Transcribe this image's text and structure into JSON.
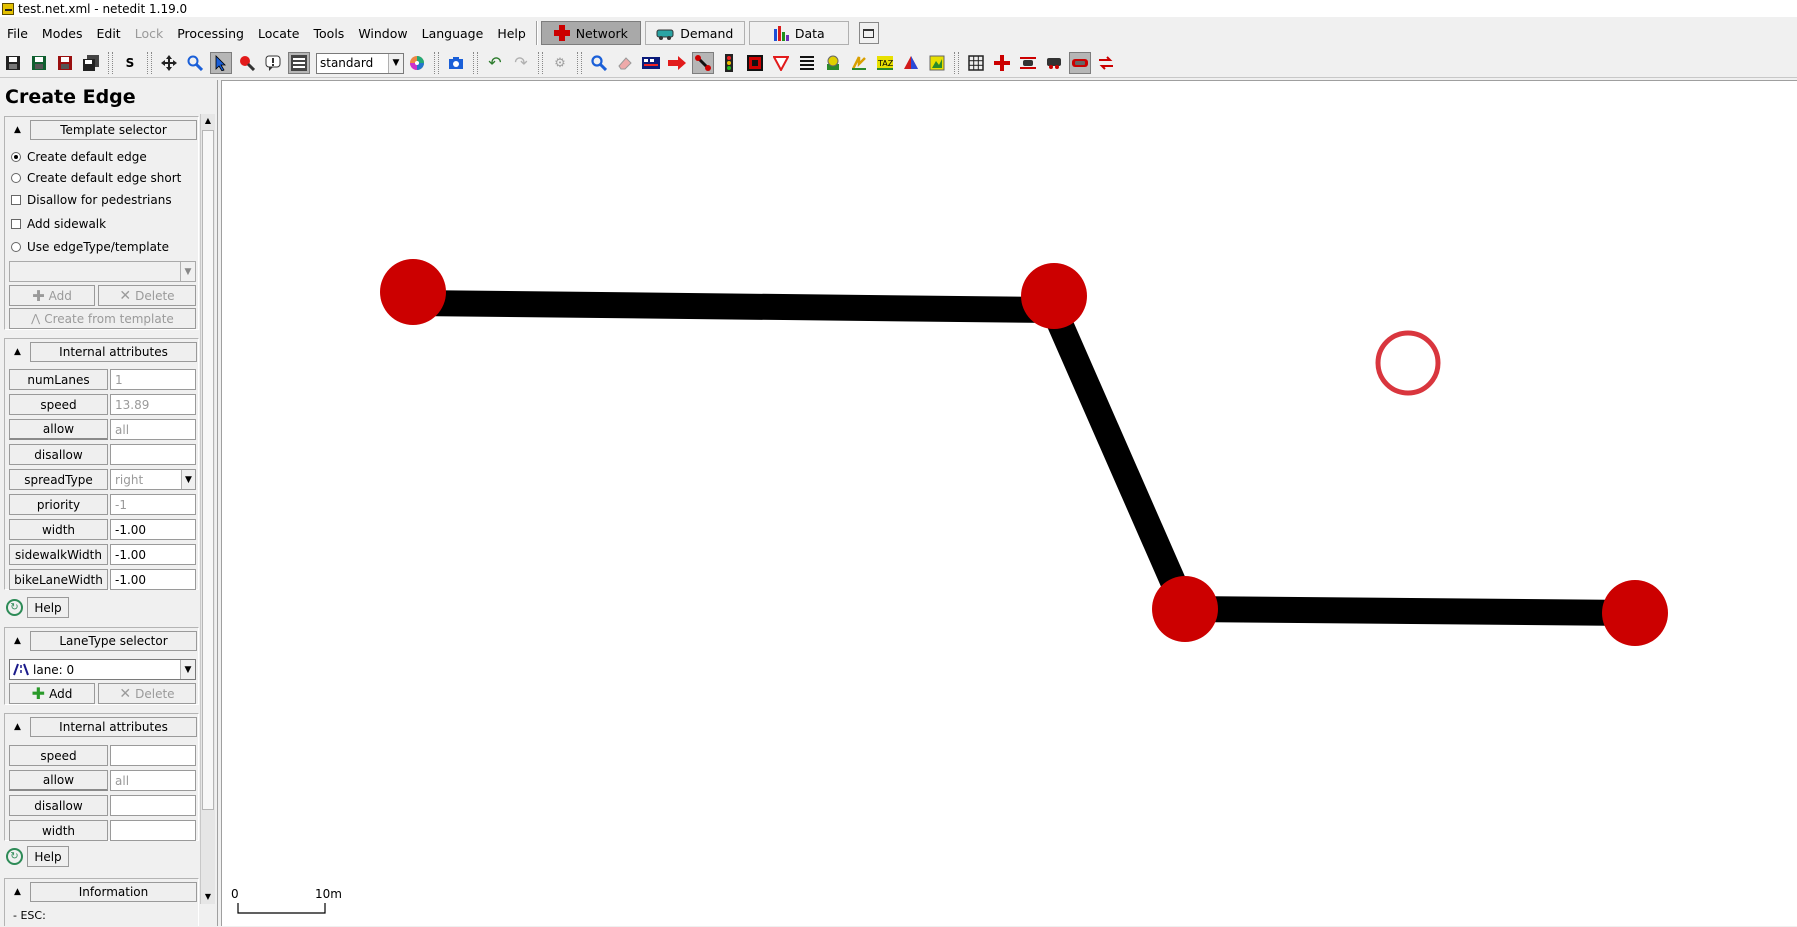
{
  "window": {
    "title": "test.net.xml - netedit 1.19.0"
  },
  "menu": {
    "items": [
      {
        "label": "File",
        "enabled": true
      },
      {
        "label": "Modes",
        "enabled": true
      },
      {
        "label": "Edit",
        "enabled": true
      },
      {
        "label": "Lock",
        "enabled": false
      },
      {
        "label": "Processing",
        "enabled": true
      },
      {
        "label": "Locate",
        "enabled": true
      },
      {
        "label": "Tools",
        "enabled": true
      },
      {
        "label": "Window",
        "enabled": true
      },
      {
        "label": "Language",
        "enabled": true
      },
      {
        "label": "Help",
        "enabled": true
      }
    ],
    "supermodes": [
      {
        "label": "Network",
        "icon": "network-cross-icon",
        "active": true
      },
      {
        "label": "Demand",
        "icon": "demand-car-icon",
        "active": false
      },
      {
        "label": "Data",
        "icon": "data-bars-icon",
        "active": false
      }
    ]
  },
  "toolbar": {
    "viewport_scheme": "standard",
    "colors": {
      "accent_red": "#cc0000",
      "active_bg": "#b6b6b6"
    }
  },
  "frame": {
    "title": "Create Edge",
    "template_selector": {
      "title": "Template selector",
      "create_default_edge": "Create default edge",
      "create_default_edge_short": "Create default edge short",
      "disallow_pedestrians": "Disallow for pedestrians",
      "add_sidewalk": "Add sidewalk",
      "use_edge_type": "Use edgeType/template",
      "add": "Add",
      "delete": "Delete",
      "create_from_template": "Create from template"
    },
    "internal_attributes_edge": {
      "title": "Internal attributes",
      "rows": [
        {
          "label": "numLanes",
          "value": "1",
          "disabled": true,
          "link": false,
          "combo": false
        },
        {
          "label": "speed",
          "value": "13.89",
          "disabled": true,
          "link": false,
          "combo": false
        },
        {
          "label": "allow",
          "value": "all",
          "disabled": true,
          "link": true,
          "combo": false
        },
        {
          "label": "disallow",
          "value": "",
          "disabled": false,
          "link": false,
          "combo": false
        },
        {
          "label": "spreadType",
          "value": "right",
          "disabled": true,
          "link": false,
          "combo": true
        },
        {
          "label": "priority",
          "value": "-1",
          "disabled": true,
          "link": false,
          "combo": false
        },
        {
          "label": "width",
          "value": "-1.00",
          "disabled": false,
          "link": false,
          "combo": false
        },
        {
          "label": "sidewalkWidth",
          "value": "-1.00",
          "disabled": false,
          "link": false,
          "combo": false
        },
        {
          "label": "bikeLaneWidth",
          "value": "-1.00",
          "disabled": false,
          "link": false,
          "combo": false
        }
      ],
      "help": "Help"
    },
    "lanetype_selector": {
      "title": "LaneType selector",
      "selected": "lane: 0",
      "add": "Add",
      "delete": "Delete"
    },
    "internal_attributes_lane": {
      "title": "Internal attributes",
      "rows": [
        {
          "label": "speed",
          "value": "",
          "disabled": false,
          "link": false
        },
        {
          "label": "allow",
          "value": "all",
          "disabled": true,
          "link": true
        },
        {
          "label": "disallow",
          "value": "",
          "disabled": false,
          "link": false
        },
        {
          "label": "width",
          "value": "",
          "disabled": false,
          "link": false
        }
      ],
      "help": "Help"
    },
    "information": {
      "title": "Information",
      "text": "- ESC:"
    }
  },
  "canvas": {
    "scale_start": "0",
    "scale_end": "10m",
    "colors": {
      "junction": "#cc0000",
      "edge": "#000000",
      "cursor_ring": "#d9363e",
      "background": "#ffffff"
    }
  }
}
